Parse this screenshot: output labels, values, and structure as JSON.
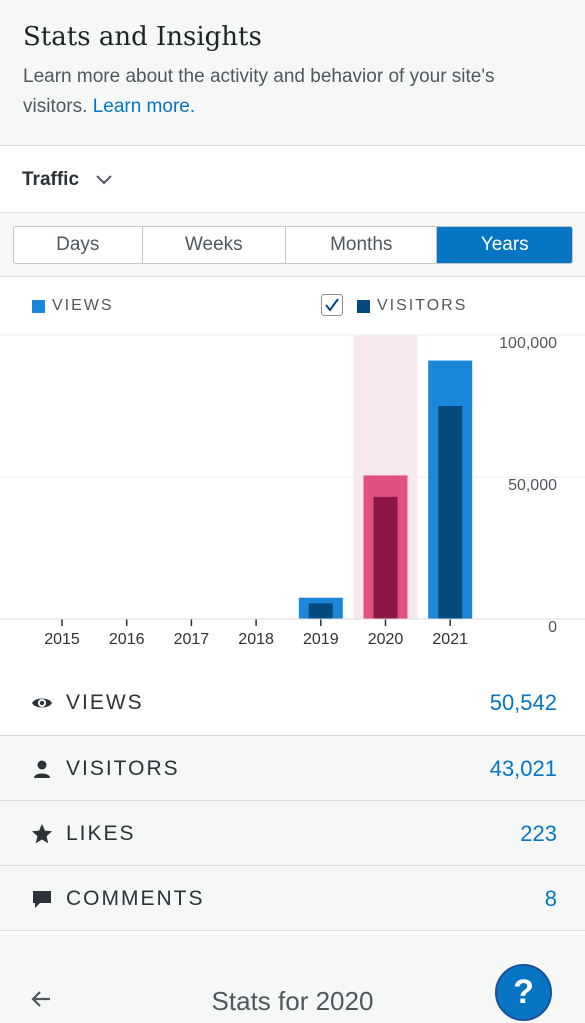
{
  "header": {
    "title": "Stats and Insights",
    "description": "Learn more about the activity and behavior of your site's visitors.",
    "learn_more": "Learn more."
  },
  "traffic": {
    "label": "Traffic"
  },
  "periods": {
    "days": "Days",
    "weeks": "Weeks",
    "months": "Months",
    "years": "Years",
    "selected": "Years"
  },
  "legend": {
    "views": "VIEWS",
    "visitors": "VISITORS",
    "visitors_checked": true
  },
  "colors": {
    "accent": "#0675c4",
    "views": "#1a87d9",
    "visitors": "#054a7c",
    "selected_views": "#e2507f",
    "selected_visitors": "#8c1648",
    "highlight": "#f9e8ee"
  },
  "chart_data": {
    "type": "bar",
    "categories": [
      "2015",
      "2016",
      "2017",
      "2018",
      "2019",
      "2020",
      "2021"
    ],
    "series": [
      {
        "name": "VIEWS",
        "values": [
          0,
          0,
          0,
          0,
          7500,
          50542,
          91000
        ]
      },
      {
        "name": "VISITORS",
        "values": [
          0,
          0,
          0,
          0,
          5500,
          43021,
          75000
        ]
      }
    ],
    "y_ticks": [
      "100,000",
      "50,000",
      "0"
    ],
    "ylim": [
      0,
      100000
    ],
    "selected_category": "2020"
  },
  "stats": [
    {
      "label": "VIEWS",
      "value": "50,542",
      "icon": "eye-icon"
    },
    {
      "label": "VISITORS",
      "value": "43,021",
      "icon": "person-icon"
    },
    {
      "label": "LIKES",
      "value": "223",
      "icon": "star-icon"
    },
    {
      "label": "COMMENTS",
      "value": "8",
      "icon": "comment-icon"
    }
  ],
  "footer": {
    "title": "Stats for 2020"
  },
  "help": {
    "label": "?"
  }
}
